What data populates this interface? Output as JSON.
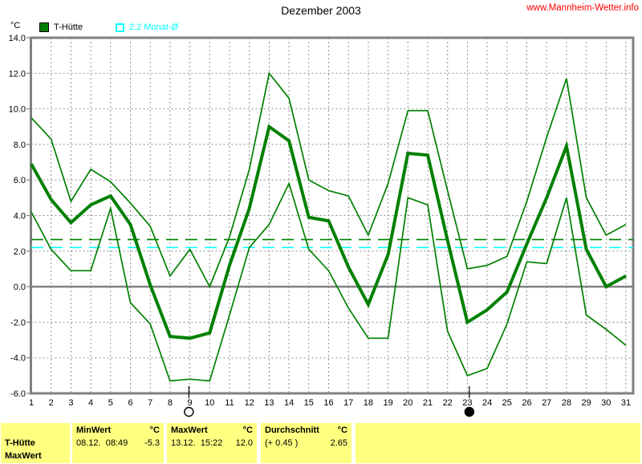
{
  "header": {
    "title": "Dezember 2003",
    "site_link": "www.Mannheim-Wetter.info"
  },
  "legend": {
    "unit_label": "°C",
    "series_label": "T-Hütte",
    "avg_label": "2.2 Monat-Ø"
  },
  "colors": {
    "series": "#008000",
    "month_avg": "#00FFFF",
    "link": "#FF0000",
    "grid": "#909090",
    "axis": "#808080",
    "table_bg": "#FFFF80",
    "text": "#000000"
  },
  "chart_data": {
    "type": "line",
    "title": "Dezember 2003",
    "xlabel": "",
    "ylabel": "°C",
    "ylim": [
      -6,
      14
    ],
    "grid": true,
    "x": [
      1,
      2,
      3,
      4,
      5,
      6,
      7,
      8,
      9,
      10,
      11,
      12,
      13,
      14,
      15,
      16,
      17,
      18,
      19,
      20,
      21,
      22,
      23,
      24,
      25,
      26,
      27,
      28,
      29,
      30,
      31
    ],
    "yticks": [
      14,
      12,
      10,
      8,
      6,
      4,
      2,
      0,
      -2,
      -4,
      -6
    ],
    "series": [
      {
        "name": "max",
        "color": "#008000",
        "width": 1.7,
        "values": [
          9.5,
          8.3,
          4.8,
          6.6,
          5.9,
          4.7,
          3.4,
          0.6,
          2.1,
          0.0,
          2.8,
          6.6,
          12.0,
          10.6,
          6.0,
          5.4,
          5.1,
          2.9,
          5.8,
          9.9,
          9.9,
          5.4,
          1.0,
          1.2,
          1.7,
          4.8,
          8.4,
          11.7,
          5.0,
          2.9,
          3.5
        ]
      },
      {
        "name": "mean",
        "color": "#008000",
        "width": 4,
        "values": [
          6.9,
          4.9,
          3.6,
          4.6,
          5.1,
          3.5,
          0.1,
          -2.8,
          -2.9,
          -2.6,
          1.2,
          4.4,
          9.0,
          8.2,
          3.9,
          3.7,
          1.1,
          -1.0,
          1.8,
          7.5,
          7.4,
          2.6,
          -2.0,
          -1.3,
          -0.3,
          2.4,
          5.0,
          7.9,
          2.1,
          0.0,
          0.6
        ]
      },
      {
        "name": "min",
        "color": "#008000",
        "width": 1.7,
        "values": [
          4.2,
          2.1,
          0.9,
          0.9,
          4.4,
          -0.9,
          -2.1,
          -5.3,
          -5.2,
          -5.3,
          -1.6,
          2.2,
          3.5,
          5.8,
          2.1,
          0.9,
          -1.2,
          -2.9,
          -2.9,
          5.0,
          4.6,
          -2.5,
          -5.0,
          -4.6,
          -2.1,
          1.4,
          1.3,
          5.0,
          -1.6,
          -2.4,
          -3.3
        ]
      }
    ],
    "reference_lines": [
      {
        "name": "durchschnitt",
        "value": 2.65,
        "color": "#008000"
      },
      {
        "name": "monat-avg",
        "value": 2.2,
        "color": "#00FFFF"
      }
    ],
    "moon_markers": [
      {
        "day": 8.95,
        "phase": "full"
      },
      {
        "day": 23.1,
        "phase": "new"
      }
    ]
  },
  "table": {
    "row_label_1": "T-Hütte",
    "row_label_2": "MaxWert",
    "columns": [
      {
        "header": "MinWert",
        "unit": "°C",
        "detail": "08.12.  08:49",
        "value": "-5.3"
      },
      {
        "header": "MaxWert",
        "unit": "°C",
        "detail": "13.12.  15:22",
        "value": "12.0"
      },
      {
        "header": "Durchschnitt",
        "unit": "°C",
        "detail": "(+ 0.45 )",
        "value": "2.65"
      }
    ]
  }
}
